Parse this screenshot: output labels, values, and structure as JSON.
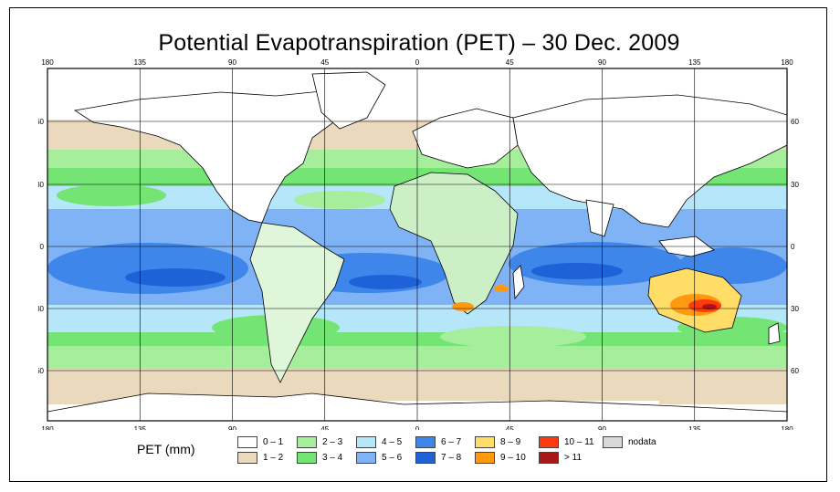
{
  "title": "Potential Evapotranspiration (PET) – 30 Dec. 2009",
  "legend_title": "PET (mm)",
  "lon_ticks": [
    "180",
    "135",
    "90",
    "45",
    "0",
    "45",
    "90",
    "135",
    "180"
  ],
  "lat_ticks": [
    "60",
    "30",
    "0",
    "30",
    "60"
  ],
  "legend": [
    {
      "label": "0 – 1",
      "color": "#ffffff"
    },
    {
      "label": "1 – 2",
      "color": "#ead9bd"
    },
    {
      "label": "2 – 3",
      "color": "#a6ee9c"
    },
    {
      "label": "3 – 4",
      "color": "#74e474"
    },
    {
      "label": "4 – 5",
      "color": "#b6e6fa"
    },
    {
      "label": "5 – 6",
      "color": "#7fb3f5"
    },
    {
      "label": "6 – 7",
      "color": "#3f86ea"
    },
    {
      "label": "7 – 8",
      "color": "#1f62d8"
    },
    {
      "label": "8 – 9",
      "color": "#ffdd66"
    },
    {
      "label": "9 – 10",
      "color": "#ff9a10"
    },
    {
      "label": "10 – 11",
      "color": "#ff3a10"
    },
    {
      "label": "> 11",
      "color": "#a81818"
    },
    {
      "label": "nodata",
      "color": "#d8d8d8"
    }
  ]
}
